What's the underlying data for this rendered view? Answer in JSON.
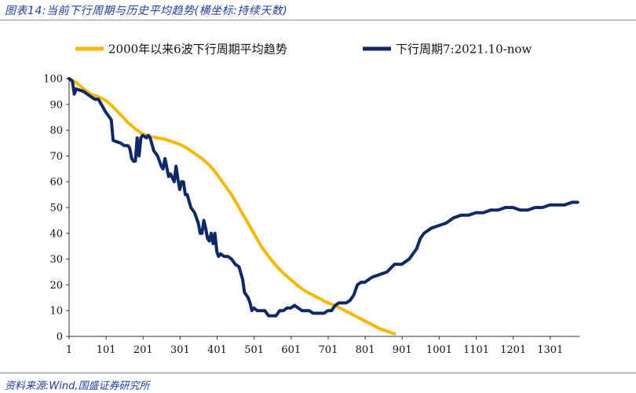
{
  "header": {
    "title": "图表14:当前下行周期与历史平均趋势(横坐标:持续天数)"
  },
  "footer": {
    "source": "资料来源:Wind,国盛证券研究所"
  },
  "colors": {
    "avg_line": "#f5b800",
    "current_line": "#0d2a66",
    "axis": "#333333",
    "brand": "#1f3f99"
  },
  "chart_data": {
    "type": "line",
    "xlabel": "",
    "ylabel": "",
    "xlim": [
      1,
      1380
    ],
    "ylim": [
      0,
      100
    ],
    "x_ticks": [
      "1",
      "101",
      "201",
      "301",
      "401",
      "501",
      "601",
      "701",
      "801",
      "901",
      "1001",
      "1101",
      "1201",
      "1301"
    ],
    "y_ticks": [
      "0",
      "10",
      "20",
      "30",
      "40",
      "50",
      "60",
      "70",
      "80",
      "90",
      "100"
    ],
    "grid": false,
    "legend_position": "top",
    "series": [
      {
        "name": "2000年以来6波下行周期平均趋势",
        "x": [
          1,
          20,
          40,
          60,
          80,
          100,
          120,
          140,
          160,
          180,
          200,
          220,
          240,
          260,
          280,
          300,
          320,
          340,
          360,
          380,
          400,
          420,
          440,
          460,
          480,
          500,
          520,
          540,
          560,
          580,
          600,
          620,
          640,
          660,
          680,
          700,
          720,
          740,
          760,
          780,
          800,
          820,
          840,
          860,
          880
        ],
        "values": [
          100,
          98.5,
          96,
          94,
          93,
          91.5,
          89,
          86,
          83,
          80.5,
          78.5,
          77.5,
          77,
          76.5,
          75.5,
          74.5,
          73,
          71,
          69,
          66.5,
          63,
          59,
          55,
          50,
          45,
          40,
          35,
          31,
          27.5,
          24.5,
          22,
          19.5,
          17.5,
          16,
          14.5,
          13,
          12,
          10.5,
          9,
          7.5,
          6,
          4.5,
          3,
          2,
          1
        ]
      },
      {
        "name": "下行周期7:2021.10-now",
        "x": [
          1,
          10,
          15,
          20,
          40,
          60,
          70,
          80,
          100,
          110,
          115,
          120,
          140,
          150,
          160,
          165,
          170,
          175,
          180,
          185,
          190,
          195,
          200,
          210,
          215,
          220,
          230,
          240,
          250,
          255,
          260,
          270,
          275,
          285,
          290,
          295,
          300,
          305,
          310,
          315,
          320,
          330,
          340,
          345,
          350,
          355,
          360,
          365,
          370,
          375,
          380,
          385,
          390,
          395,
          400,
          405,
          410,
          420,
          430,
          440,
          450,
          460,
          470,
          475,
          480,
          485,
          490,
          495,
          500,
          510,
          520,
          530,
          540,
          550,
          560,
          570,
          580,
          590,
          600,
          610,
          620,
          630,
          640,
          650,
          660,
          670,
          680,
          690,
          700,
          710,
          720,
          730,
          740,
          750,
          760,
          770,
          780,
          790,
          800,
          810,
          820,
          840,
          860,
          880,
          900,
          920,
          930,
          940,
          950,
          960,
          980,
          1000,
          1020,
          1040,
          1060,
          1080,
          1100,
          1120,
          1140,
          1160,
          1180,
          1200,
          1220,
          1240,
          1260,
          1280,
          1300,
          1320,
          1340,
          1360,
          1375
        ],
        "values": [
          100,
          99,
          94,
          96,
          95,
          93,
          92,
          92,
          87,
          85,
          84,
          76,
          75,
          74,
          74,
          73,
          69,
          68,
          68,
          77,
          70,
          77,
          78,
          77,
          78,
          77,
          72,
          70,
          66,
          65,
          69,
          62,
          63,
          60,
          66,
          61,
          57,
          60,
          60,
          55,
          55,
          50,
          48,
          46,
          44,
          40,
          40,
          45,
          42,
          38,
          37,
          40,
          36,
          40,
          33,
          31,
          32,
          31,
          31,
          30,
          28,
          27,
          22,
          17,
          16,
          15,
          13,
          10,
          11,
          10,
          10,
          10,
          8,
          8,
          8,
          10,
          10,
          11,
          11,
          12,
          11,
          10,
          10,
          10,
          9,
          9,
          9,
          9,
          10,
          10,
          12,
          13,
          13,
          13,
          14,
          16,
          20,
          21,
          21,
          22,
          23,
          24,
          25,
          28,
          28,
          30,
          32,
          34,
          38,
          40,
          42,
          43,
          44,
          46,
          47,
          47,
          48,
          48,
          49,
          49,
          50,
          50,
          49,
          49,
          50,
          50,
          51,
          51,
          51,
          52,
          52
        ]
      }
    ]
  }
}
